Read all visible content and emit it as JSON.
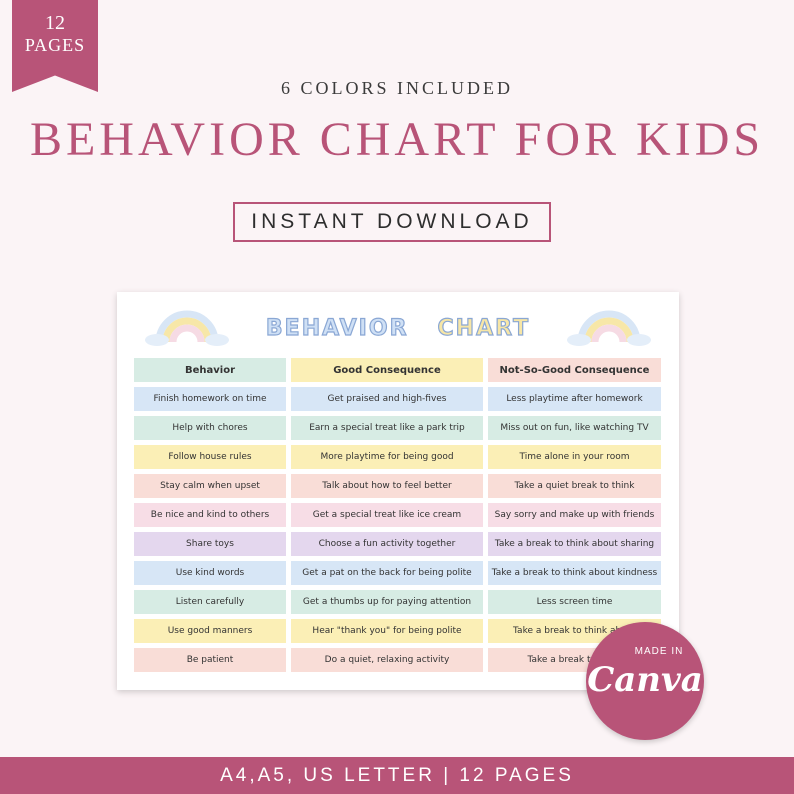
{
  "ribbon": {
    "count": "12",
    "word": "PAGES"
  },
  "subtitle": "6 COLORS INCLUDED",
  "title": "BEHAVIOR CHART FOR KIDS",
  "download_label": "INSTANT DOWNLOAD",
  "chart": {
    "title_part1": "BEHAVIOR",
    "title_part2": "CHART",
    "headers": [
      "Behavior",
      "Good Consequence",
      "Not-So-Good Consequence"
    ],
    "rows": [
      [
        "Finish homework on time",
        "Get praised and high-fives",
        "Less playtime after homework"
      ],
      [
        "Help with chores",
        "Earn a special treat like a park trip",
        "Miss out on fun, like watching TV"
      ],
      [
        "Follow house rules",
        "More playtime for being good",
        "Time alone in your room"
      ],
      [
        "Stay calm when upset",
        "Talk about how to feel better",
        "Take a quiet break to think"
      ],
      [
        "Be nice and kind to others",
        "Get a special treat like ice cream",
        "Say sorry and make up with friends"
      ],
      [
        "Share toys",
        "Choose a fun activity together",
        "Take a break to think about sharing"
      ],
      [
        "Use kind words",
        "Get a pat on the back for being polite",
        "Take a break to think about kindness"
      ],
      [
        "Listen carefully",
        "Get a thumbs up for paying attention",
        "Less screen time"
      ],
      [
        "Use good manners",
        "Hear \"thank you\" for being polite",
        "Take a break to think about"
      ],
      [
        "Be patient",
        "Do a quiet, relaxing activity",
        "Take a break to think"
      ]
    ]
  },
  "badge": {
    "made_in": "MADE IN",
    "brand": "Canva"
  },
  "footer": "A4,A5, US LETTER | 12 PAGES",
  "colors": {
    "accent": "#b85478",
    "background": "#fbf4f6"
  }
}
